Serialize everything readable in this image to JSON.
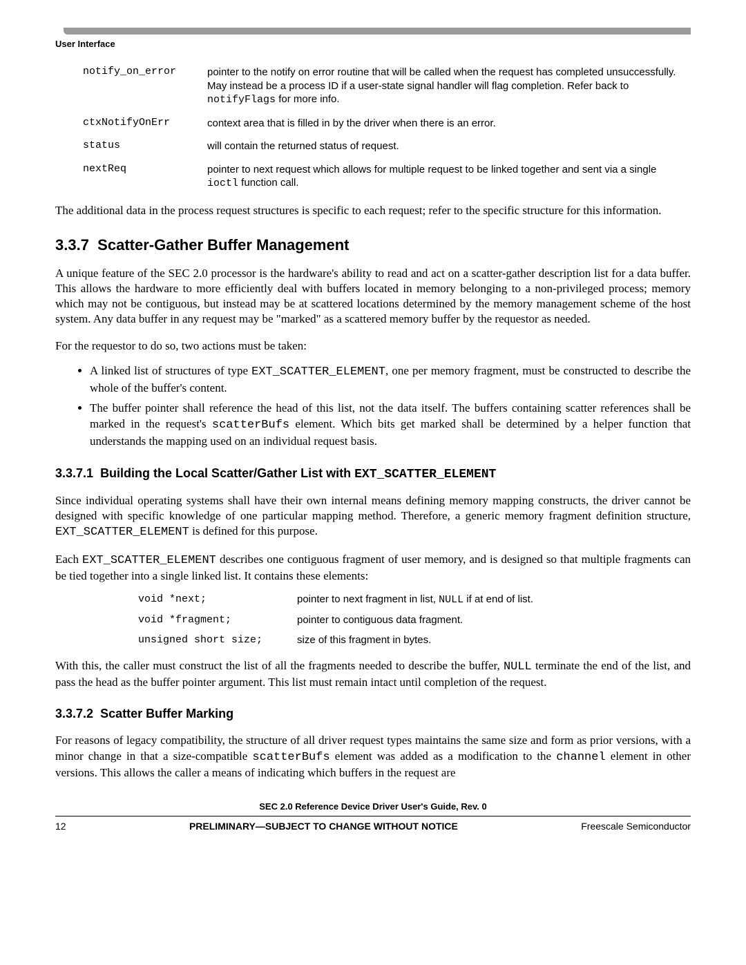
{
  "header": {
    "section_label": "User Interface",
    "bar_color": "#9a9a9a"
  },
  "param_table": {
    "rows": [
      {
        "name": "notify_on_error",
        "desc_parts": [
          {
            "t": "pointer to the notify on error routine that will be called when the request has completed unsuccessfully. May instead be a process ID if a user-state signal handler will flag completion. Refer back to "
          },
          {
            "t": "notifyFlags",
            "mono": true
          },
          {
            "t": " for more info."
          }
        ]
      },
      {
        "name": "ctxNotifyOnErr",
        "desc_parts": [
          {
            "t": "context area that is filled in by the driver when there is an error."
          }
        ]
      },
      {
        "name": "status",
        "desc_parts": [
          {
            "t": "will contain the returned status of request."
          }
        ]
      },
      {
        "name": "nextReq",
        "desc_parts": [
          {
            "t": "pointer to next request which allows for multiple request to be linked together and sent via a single "
          },
          {
            "t": "ioctl",
            "mono": true
          },
          {
            "t": " function call."
          }
        ]
      }
    ]
  },
  "para1": "The additional data in the process request structures is specific to each request; refer to the specific structure for this information.",
  "h2_num": "3.3.7",
  "h2_title": "Scatter-Gather Buffer Management",
  "para2": "A unique feature of the SEC 2.0 processor is the hardware's ability to read and act on a scatter-gather description list for a data buffer. This allows the hardware to more efficiently deal with buffers located in memory belonging to a non-privileged process; memory which may not be contiguous, but instead may be at scattered locations determined by the memory management scheme of the host system. Any data buffer in any request may be \"marked\" as a scattered memory buffer by the requestor as needed.",
  "para3": "For the requestor to do so, two actions must be taken:",
  "bullets": [
    {
      "parts": [
        {
          "t": "A linked list of structures of type "
        },
        {
          "t": "EXT_SCATTER_ELEMENT",
          "mono": true
        },
        {
          "t": ", one per memory fragment, must be constructed to describe the whole of the buffer's content."
        }
      ]
    },
    {
      "parts": [
        {
          "t": "The buffer pointer shall reference the head of this list, not the data itself. The buffers containing scatter references shall be marked in the request's "
        },
        {
          "t": "scatterBufs",
          "mono": true
        },
        {
          "t": " element. Which bits get marked shall be determined by a helper function that understands the mapping used on an individual request basis."
        }
      ]
    }
  ],
  "h3a_num": "3.3.7.1",
  "h3a_title_pre": "Building the Local Scatter/Gather List with ",
  "h3a_title_code": "EXT_SCATTER_ELEMENT",
  "para4_parts": [
    {
      "t": "Since individual operating systems shall have their own internal means defining memory mapping constructs, the driver cannot be designed with specific knowledge of one particular mapping method. Therefore, a generic memory fragment definition structure, "
    },
    {
      "t": "EXT_SCATTER_ELEMENT",
      "mono": true
    },
    {
      "t": " is defined for this purpose."
    }
  ],
  "para5_parts": [
    {
      "t": "Each "
    },
    {
      "t": "EXT_SCATTER_ELEMENT",
      "mono": true
    },
    {
      "t": " describes one contiguous fragment of user memory, and is designed so that multiple fragments can be tied together into a single linked list. It contains these elements:"
    }
  ],
  "elem_table": {
    "rows": [
      {
        "name": "void *next;",
        "desc_parts": [
          {
            "t": "pointer to next fragment in list, "
          },
          {
            "t": "NULL",
            "mono": true
          },
          {
            "t": " if at end of list."
          }
        ]
      },
      {
        "name": "void *fragment;",
        "desc_parts": [
          {
            "t": "pointer to contiguous data fragment."
          }
        ]
      },
      {
        "name": "unsigned short size;",
        "desc_parts": [
          {
            "t": "size of this fragment in bytes."
          }
        ]
      }
    ]
  },
  "para6_parts": [
    {
      "t": "With this, the caller must construct the list of all the fragments needed to describe the buffer, "
    },
    {
      "t": "NULL",
      "mono": true
    },
    {
      "t": " terminate the end of the list, and pass the head as the buffer pointer argument. This list must remain intact until completion of the request."
    }
  ],
  "h3b_num": "3.3.7.2",
  "h3b_title": "Scatter Buffer Marking",
  "para7_parts": [
    {
      "t": "For reasons of legacy compatibility, the structure of all driver request types maintains the same size and form as prior versions, with a minor change in that a size-compatible "
    },
    {
      "t": "scatterBufs",
      "mono": true
    },
    {
      "t": " element was added as a modification to the "
    },
    {
      "t": "channel",
      "mono": true
    },
    {
      "t": " element in other versions. This allows the caller a means of indicating which buffers in the request are"
    }
  ],
  "footer": {
    "doc_title": "SEC 2.0 Reference Device Driver User's Guide, Rev. 0",
    "page_num": "12",
    "center": "PRELIMINARY—SUBJECT TO CHANGE WITHOUT NOTICE",
    "right": "Freescale Semiconductor"
  }
}
